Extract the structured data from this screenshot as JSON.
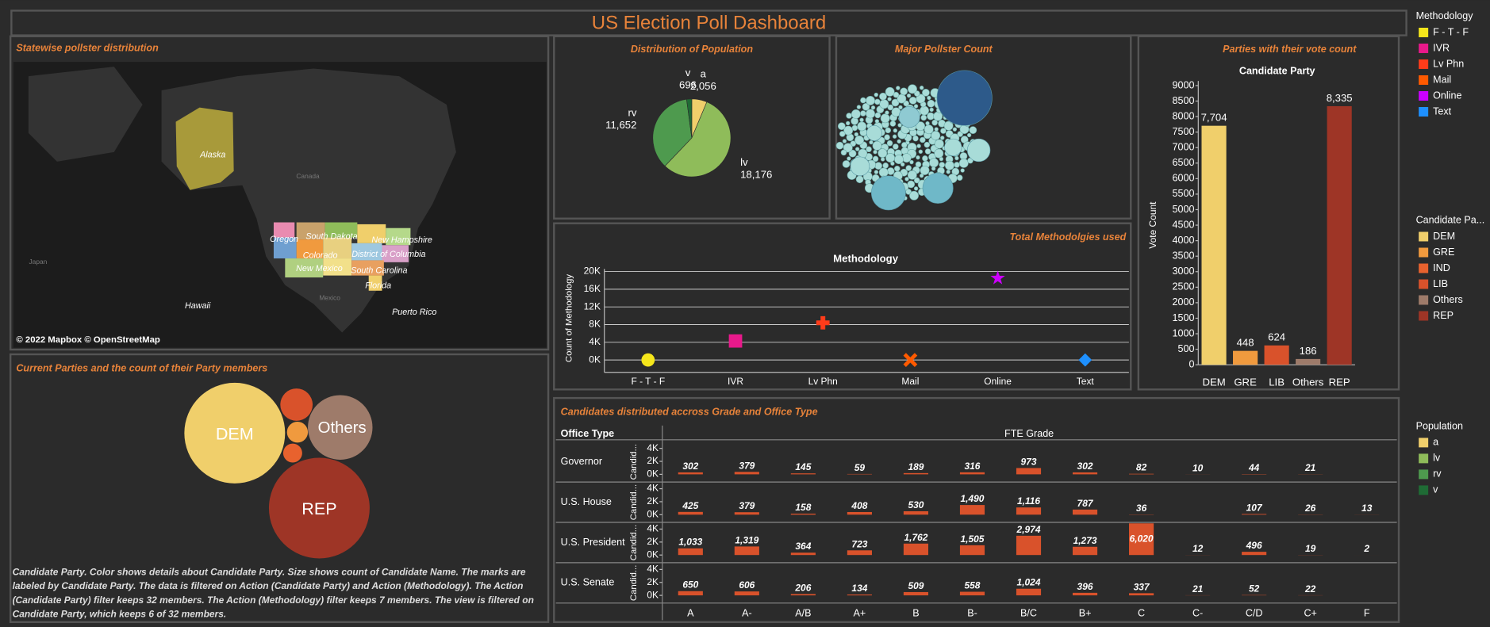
{
  "title": "US Election Poll Dashboard",
  "chart_data": [
    {
      "type": "map",
      "title": "Statewise pollster distribution",
      "labels": [
        "Alaska",
        "Canada",
        "Oregon",
        "South Dakota",
        "New Hampshire",
        "Colorado",
        "District of Columbia",
        "New Mexico",
        "South Carolina",
        "Florida",
        "Japan",
        "Mexico",
        "Hawaii",
        "Puerto Rico"
      ],
      "attribution": "© 2022 Mapbox © OpenStreetMap"
    },
    {
      "type": "pie",
      "title": "Distribution of Population",
      "categories": [
        "a",
        "lv",
        "rv",
        "v"
      ],
      "values": [
        2056,
        18176,
        11652,
        696
      ],
      "value_labels": [
        "2,056",
        "18,176",
        "11,652",
        "696"
      ],
      "colors": [
        "#f0cf6b",
        "#8fbc5a",
        "#4e9a4e",
        "#1f6b35"
      ]
    },
    {
      "type": "packed-bubble",
      "title": "Major Pollster Count"
    },
    {
      "type": "shape",
      "title": "Total Methodolgies used",
      "x_label": "Methodology",
      "y_label": "Count of Methodology",
      "categories": [
        "F - T - F",
        "IVR",
        "Lv Phn",
        "Mail",
        "Online",
        "Text"
      ],
      "values": [
        0,
        4300,
        8400,
        0,
        18500,
        0
      ],
      "colors": [
        "#f5e61b",
        "#e8198b",
        "#ff3c1a",
        "#ff5a00",
        "#cc00ff",
        "#1e90ff"
      ],
      "shapes": [
        "circle",
        "square",
        "plus",
        "cross",
        "star",
        "diamond"
      ],
      "ylim": [
        -2800,
        20600
      ],
      "yticks": [
        {
          "value": 0,
          "label": "0K"
        },
        {
          "value": 4000,
          "label": "4K"
        },
        {
          "value": 8000,
          "label": "8K"
        },
        {
          "value": 12000,
          "label": "12K"
        },
        {
          "value": 16000,
          "label": "16K"
        },
        {
          "value": 20000,
          "label": "20K"
        }
      ],
      "grid": true
    },
    {
      "type": "bar",
      "title": "Parties with their vote count",
      "subtitle": "Candidate Party",
      "y_label": "Vote Count",
      "categories": [
        "DEM",
        "GRE",
        "LIB",
        "Others",
        "REP"
      ],
      "values": [
        7704,
        448,
        624,
        186,
        8335
      ],
      "value_labels": [
        "7,704",
        "448",
        "624",
        "186",
        "8,335"
      ],
      "colors": [
        "#f0cf6b",
        "#f09a3e",
        "#d9522b",
        "#9e7b6a",
        "#9e3526"
      ],
      "ylim": [
        0,
        9150
      ],
      "yticks": [
        0,
        500,
        1000,
        1500,
        2000,
        2500,
        3000,
        3500,
        4000,
        4500,
        5000,
        5500,
        6000,
        6500,
        7000,
        7500,
        8000,
        8500,
        9000
      ]
    },
    {
      "type": "packed-bubble",
      "title": "Current Parties and the count of their Party members",
      "labels": [
        "DEM",
        "Others",
        "REP"
      ],
      "caption": [
        "Candidate Party.  Color shows details about Candidate Party.  Size shows count of Candidate Name.  The marks are",
        "labeled by Candidate Party. The data is filtered on Action (Candidate Party) and Action (Methodology). The Action",
        "(Candidate Party) filter keeps 32 members. The Action (Methodology) filter keeps 7 members. The view is filtered on",
        "Candidate Party, which keeps 6 of 32 members."
      ]
    },
    {
      "type": "bar-grid",
      "title": "Candidates distributed accross Grade and Office Type",
      "row_header": "Office Type",
      "column_header": "FTE Grade",
      "y_label": "Candid...",
      "categories": [
        "A",
        "A-",
        "A/B",
        "A+",
        "B",
        "B-",
        "B/C",
        "B+",
        "C",
        "C-",
        "C/D",
        "C+",
        "F"
      ],
      "color": "#d9522b",
      "series": [
        {
          "name": "Governor",
          "values": [
            302,
            379,
            145,
            59,
            189,
            316,
            973,
            302,
            82,
            10,
            44,
            21,
            null
          ],
          "value_labels": [
            "302",
            "379",
            "145",
            "59",
            "189",
            "316",
            "973",
            "302",
            "82",
            "10",
            "44",
            "21",
            null
          ]
        },
        {
          "name": "U.S. House",
          "values": [
            425,
            379,
            158,
            408,
            530,
            1490,
            1116,
            787,
            36,
            null,
            107,
            26,
            13
          ],
          "value_labels": [
            "425",
            "379",
            "158",
            "408",
            "530",
            "1,490",
            "1,116",
            "787",
            "36",
            null,
            "107",
            "26",
            "13"
          ]
        },
        {
          "name": "U.S. President",
          "values": [
            1033,
            1319,
            364,
            723,
            1762,
            1505,
            2974,
            1273,
            6020,
            12,
            496,
            19,
            2
          ],
          "value_labels": [
            "1,033",
            "1,319",
            "364",
            "723",
            "1,762",
            "1,505",
            "2,974",
            "1,273",
            "6,020",
            "12",
            "496",
            "19",
            "2"
          ]
        },
        {
          "name": "U.S. Senate",
          "values": [
            650,
            606,
            206,
            134,
            509,
            558,
            1024,
            396,
            337,
            21,
            52,
            22,
            null
          ],
          "value_labels": [
            "650",
            "606",
            "206",
            "134",
            "509",
            "558",
            "1,024",
            "396",
            "337",
            "21",
            "52",
            "22",
            null
          ]
        }
      ],
      "ylim": [
        -1185,
        5037
      ],
      "yticks": [
        {
          "value": 0,
          "label": "0K"
        },
        {
          "value": 2000,
          "label": "2K"
        },
        {
          "value": 4000,
          "label": "4K"
        }
      ]
    }
  ],
  "legends": [
    {
      "title": "Methodology",
      "items": [
        {
          "label": "F - T - F",
          "color": "#f5e61b"
        },
        {
          "label": "IVR",
          "color": "#e8198b"
        },
        {
          "label": "Lv Phn",
          "color": "#ff3c1a"
        },
        {
          "label": "Mail",
          "color": "#ff5a00"
        },
        {
          "label": "Online",
          "color": "#cc00ff"
        },
        {
          "label": "Text",
          "color": "#1e90ff"
        }
      ]
    },
    {
      "title": "Candidate Pa...",
      "items": [
        {
          "label": "DEM",
          "color": "#f0cf6b"
        },
        {
          "label": "GRE",
          "color": "#f09a3e"
        },
        {
          "label": "IND",
          "color": "#e8622e"
        },
        {
          "label": "LIB",
          "color": "#d9522b"
        },
        {
          "label": "Others",
          "color": "#9e7b6a"
        },
        {
          "label": "REP",
          "color": "#9e3526"
        }
      ]
    },
    {
      "title": "Population",
      "items": [
        {
          "label": "a",
          "color": "#f0cf6b"
        },
        {
          "label": "lv",
          "color": "#8fbc5a"
        },
        {
          "label": "rv",
          "color": "#4e9a4e"
        },
        {
          "label": "v",
          "color": "#1f6b35"
        }
      ]
    }
  ]
}
